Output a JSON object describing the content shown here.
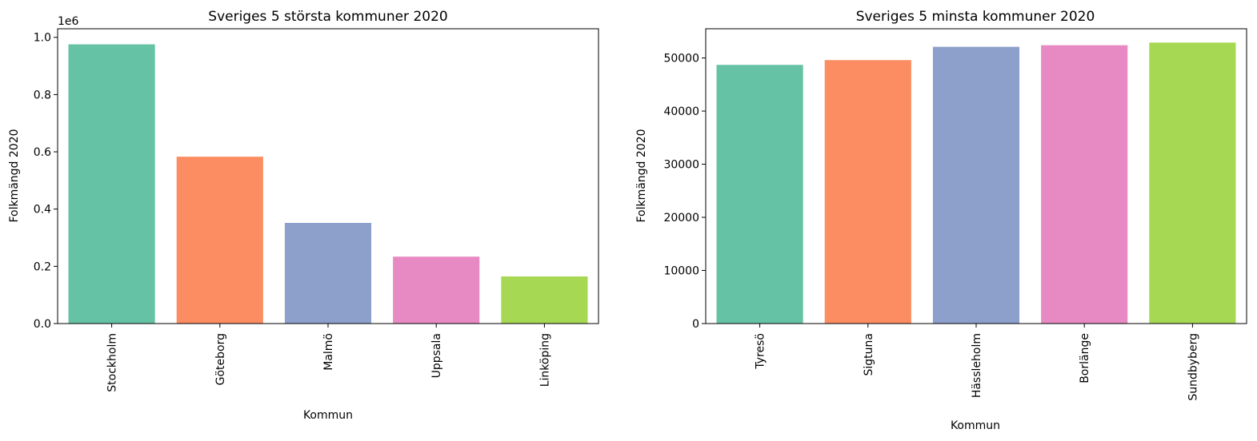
{
  "chart_data": [
    {
      "type": "bar",
      "title": "Sveriges 5 största kommuner 2020",
      "xlabel": "Kommun",
      "ylabel": "Folkmängd 2020",
      "offset_label": "1e6",
      "categories": [
        "Stockholm",
        "Göteborg",
        "Malmö",
        "Uppsala",
        "Linköping"
      ],
      "values": [
        975551,
        583056,
        351749,
        233839,
        164616
      ],
      "ylim": [
        0,
        1030000
      ],
      "yticks": [
        0,
        200000,
        400000,
        600000,
        800000,
        1000000
      ],
      "ytick_labels": [
        "0.0",
        "0.2",
        "0.4",
        "0.6",
        "0.8",
        "1.0"
      ],
      "colors": [
        "#66c2a5",
        "#fc8d62",
        "#8da0cb",
        "#e78ac3",
        "#a6d854"
      ],
      "grid": false
    },
    {
      "type": "bar",
      "title": "Sveriges 5 minsta kommuner 2020",
      "xlabel": "Kommun",
      "ylabel": "Folkmängd 2020",
      "offset_label": "",
      "categories": [
        "Tyresö",
        "Sigtuna",
        "Hässleholm",
        "Borlänge",
        "Sundbyberg"
      ],
      "values": [
        48700,
        49600,
        52100,
        52400,
        52900
      ],
      "ylim": [
        0,
        55500
      ],
      "yticks": [
        0,
        10000,
        20000,
        30000,
        40000,
        50000
      ],
      "ytick_labels": [
        "0",
        "10000",
        "20000",
        "30000",
        "40000",
        "50000"
      ],
      "colors": [
        "#66c2a5",
        "#fc8d62",
        "#8da0cb",
        "#e78ac3",
        "#a6d854"
      ],
      "grid": false
    }
  ]
}
